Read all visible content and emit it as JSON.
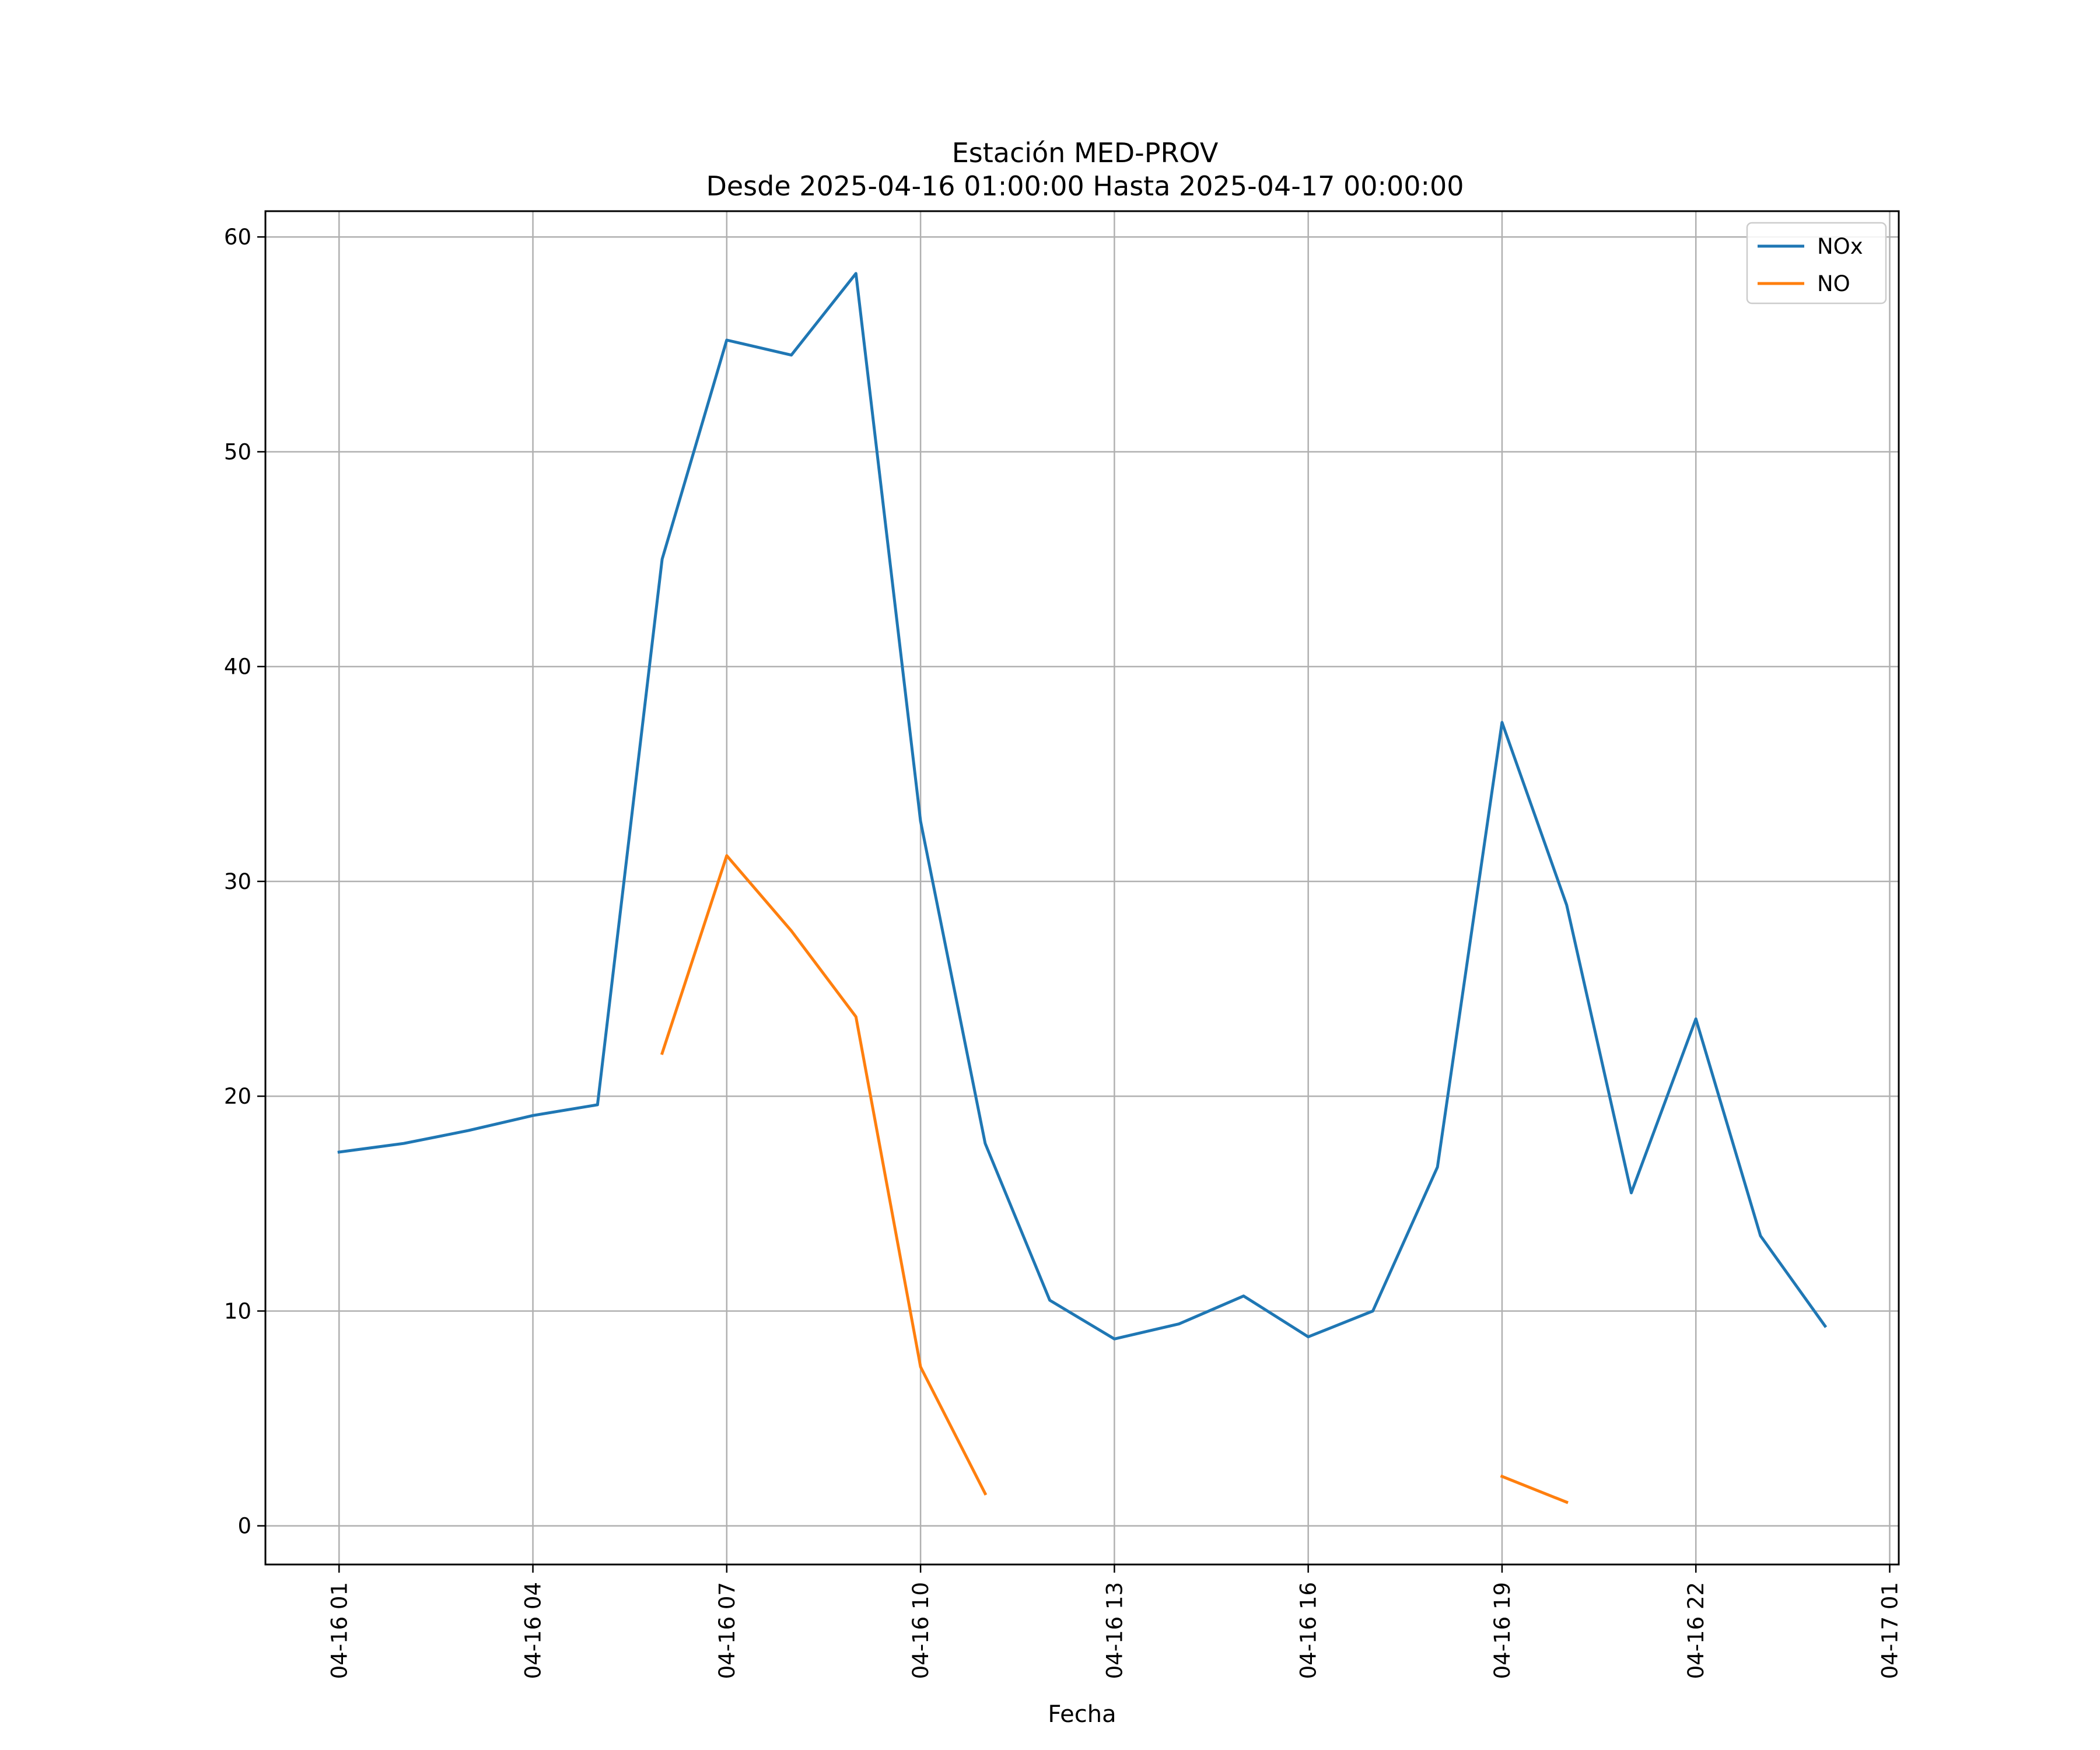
{
  "chart_data": {
    "type": "line",
    "title": "Estación MED-PROV",
    "subtitle": "Desde 2025-04-16 01:00:00 Hasta 2025-04-17 00:00:00",
    "xlabel": "Fecha",
    "ylabel": "",
    "x": [
      "04-16 01:00",
      "04-16 02:00",
      "04-16 03:00",
      "04-16 04:00",
      "04-16 05:00",
      "04-16 06:00",
      "04-16 07:00",
      "04-16 08:00",
      "04-16 09:00",
      "04-16 10:00",
      "04-16 11:00",
      "04-16 12:00",
      "04-16 13:00",
      "04-16 14:00",
      "04-16 15:00",
      "04-16 16:00",
      "04-16 17:00",
      "04-16 18:00",
      "04-16 19:00",
      "04-16 20:00",
      "04-16 21:00",
      "04-16 22:00",
      "04-16 23:00",
      "04-17 00:00"
    ],
    "x_ticks": [
      "04-16 01",
      "04-16 04",
      "04-16 07",
      "04-16 10",
      "04-16 13",
      "04-16 16",
      "04-16 19",
      "04-16 22",
      "04-17 01"
    ],
    "x_tick_hours": [
      0,
      3,
      6,
      9,
      12,
      15,
      18,
      21,
      24
    ],
    "xlim_hours": [
      -1.14,
      24.14
    ],
    "y_ticks": [
      0,
      10,
      20,
      30,
      40,
      50,
      60
    ],
    "ylim": [
      -1.8,
      61.2
    ],
    "grid": true,
    "legend": "top-right",
    "series": [
      {
        "name": "NOx",
        "color": "#1f77b4",
        "values": [
          17.4,
          17.8,
          18.4,
          19.1,
          19.6,
          45.0,
          55.2,
          54.5,
          58.3,
          32.8,
          17.8,
          10.5,
          8.7,
          9.4,
          10.7,
          8.8,
          10.0,
          16.7,
          37.4,
          28.9,
          15.5,
          23.6,
          13.5,
          9.3
        ]
      },
      {
        "name": "NO",
        "color": "#ff7f0e",
        "values": [
          null,
          null,
          null,
          null,
          null,
          22.0,
          31.2,
          27.7,
          23.7,
          7.4,
          1.5,
          null,
          null,
          null,
          null,
          null,
          null,
          null,
          2.3,
          1.1,
          null,
          null,
          null,
          null
        ]
      }
    ]
  }
}
